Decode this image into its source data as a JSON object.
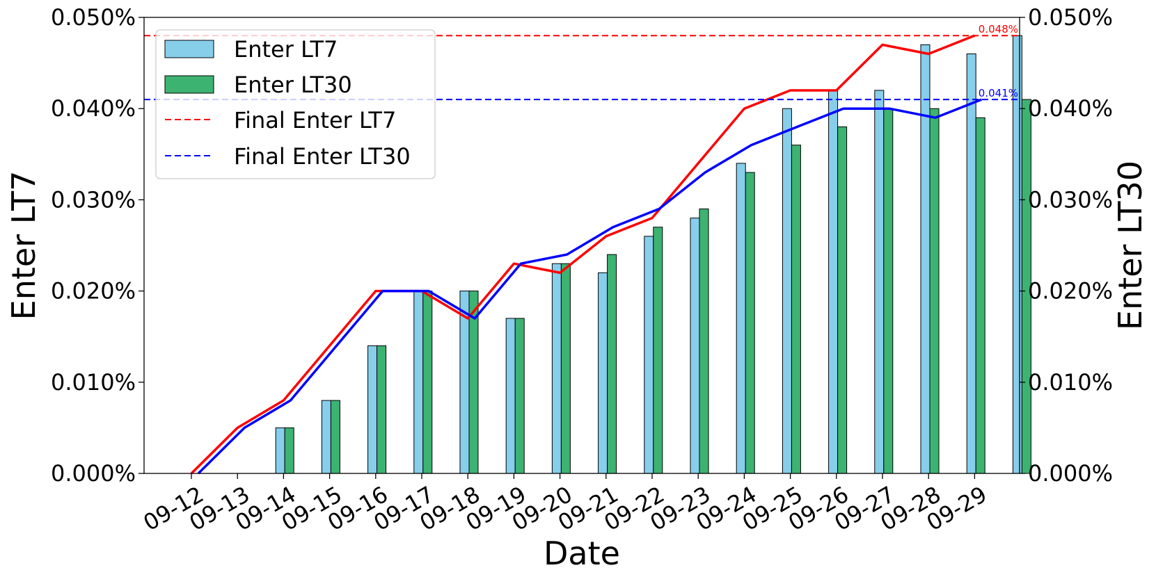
{
  "chart_data": {
    "type": "bar",
    "xlabel": "Date",
    "ylabel_left": "Enter LT7",
    "ylabel_right": "Enter LT30",
    "ylim": [
      0,
      0.05
    ],
    "y_tick_labels": [
      "0.000%",
      "0.010%",
      "0.020%",
      "0.030%",
      "0.040%",
      "0.050%"
    ],
    "y_ticks": [
      0,
      0.01,
      0.02,
      0.03,
      0.04,
      0.05
    ],
    "grid": false,
    "legend_position": "top-left",
    "categories": [
      "09-12",
      "09-13",
      "09-14",
      "09-15",
      "09-16",
      "09-17",
      "09-18",
      "09-19",
      "09-20",
      "09-21",
      "09-22",
      "09-23",
      "09-24",
      "09-25",
      "09-26",
      "09-27",
      "09-28",
      "09-29"
    ],
    "series": [
      {
        "name": "Enter LT7",
        "kind": "bar",
        "color": "#87CEEB",
        "values": [
          0,
          0.005,
          0.008,
          0.014,
          0.02,
          0.02,
          0.017,
          0.023,
          0.022,
          0.026,
          0.028,
          0.034,
          0.04,
          0.042,
          0.042,
          0.047,
          0.046,
          0.048
        ]
      },
      {
        "name": "Enter LT30",
        "kind": "bar",
        "color": "#3CB371",
        "values": [
          0,
          0.005,
          0.008,
          0.014,
          0.02,
          0.02,
          0.017,
          0.023,
          0.024,
          0.027,
          0.029,
          0.033,
          0.036,
          0.038,
          0.04,
          0.04,
          0.039,
          0.041
        ]
      },
      {
        "kind": "line",
        "color": "#ff0000",
        "follows": "Enter LT7"
      },
      {
        "kind": "line",
        "color": "#0000ff",
        "follows": "Enter LT30"
      }
    ],
    "reference_lines": [
      {
        "name": "Final Enter LT7",
        "value": 0.048,
        "label": "0.048%",
        "color": "#ff0000",
        "style": "dashed"
      },
      {
        "name": "Final Enter LT30",
        "value": 0.041,
        "label": "0.041%",
        "color": "#0000ff",
        "style": "dashed"
      }
    ]
  }
}
